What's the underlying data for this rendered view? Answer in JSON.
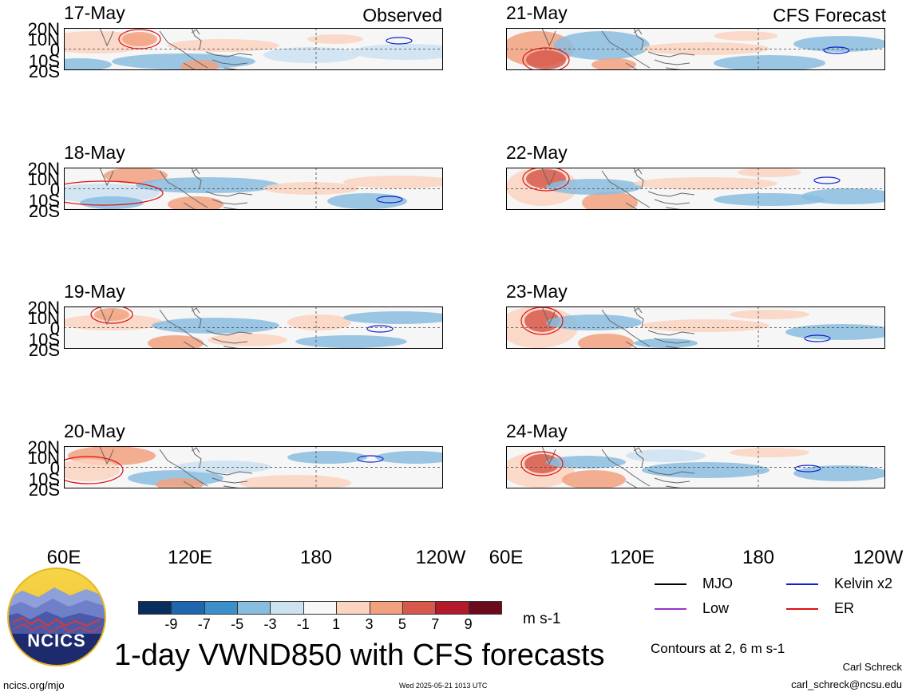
{
  "panels": {
    "observed_title": "Observed",
    "forecast_title": "CFS Forecast",
    "dates_observed": [
      "17-May",
      "18-May",
      "19-May",
      "20-May"
    ],
    "dates_forecast": [
      "21-May",
      "22-May",
      "23-May",
      "24-May"
    ]
  },
  "axes": {
    "y_ticks": [
      "20N",
      "10N",
      "0",
      "10S",
      "20S"
    ],
    "x_ticks": [
      "60E",
      "120E",
      "180",
      "120W"
    ]
  },
  "colorbar": {
    "labels": [
      "-9",
      "-7",
      "-5",
      "-3",
      "-1",
      "1",
      "3",
      "5",
      "7",
      "9"
    ],
    "colors": [
      "#0a2e5c",
      "#1f66ae",
      "#3d8fca",
      "#89bde0",
      "#cde2f1",
      "#f7f7f7",
      "#fcd4bf",
      "#f2a17f",
      "#d7594b",
      "#b31a2b",
      "#6b0a1f"
    ],
    "units": "m s-1"
  },
  "legend": {
    "items": [
      {
        "label": "MJO",
        "color": "#000000"
      },
      {
        "label": "Kelvin x2",
        "color": "#1020d0"
      },
      {
        "label": "Low",
        "color": "#9933cc"
      },
      {
        "label": "ER",
        "color": "#e01010"
      }
    ],
    "contours_note": "Contours at 2, 6 m s-1"
  },
  "logo": {
    "text": "NCICS"
  },
  "title": "1-day VWND850 with CFS forecasts",
  "footer": {
    "url": "ncics.org/mjo",
    "timestamp": "Wed 2025-05-21 1013 UTC",
    "author": "Carl Schreck",
    "email": "carl_schreck@ncsu.edu"
  }
}
